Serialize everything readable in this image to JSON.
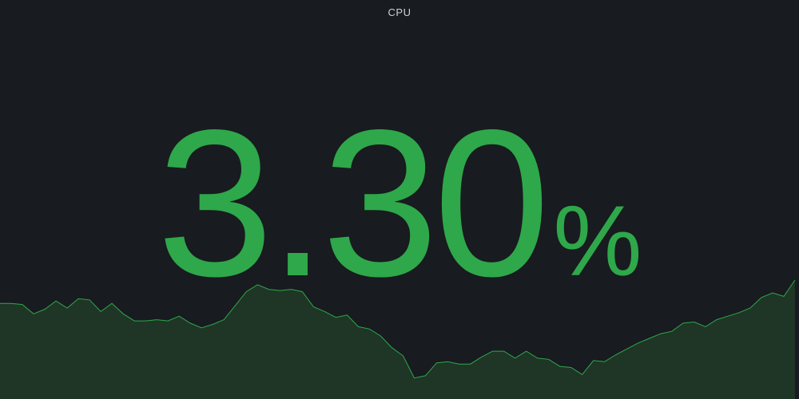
{
  "panel": {
    "title": "CPU",
    "value": "3.30",
    "unit": "%",
    "color": "#2ea84a",
    "fill_color": "#1f3526"
  },
  "sparkline_data": {
    "type": "area",
    "values": [
      0.52,
      0.52,
      0.51,
      0.43,
      0.47,
      0.54,
      0.48,
      0.56,
      0.55,
      0.45,
      0.52,
      0.43,
      0.37,
      0.37,
      0.38,
      0.37,
      0.41,
      0.35,
      0.31,
      0.34,
      0.38,
      0.5,
      0.62,
      0.68,
      0.64,
      0.63,
      0.64,
      0.62,
      0.49,
      0.45,
      0.4,
      0.42,
      0.32,
      0.3,
      0.24,
      0.14,
      0.07,
      -0.12,
      -0.1,
      0.01,
      0.02,
      0.0,
      0.0,
      0.06,
      0.11,
      0.11,
      0.05,
      0.11,
      0.05,
      0.04,
      -0.02,
      -0.03,
      -0.09,
      0.03,
      0.02,
      0.08,
      0.13,
      0.18,
      0.22,
      0.26,
      0.28,
      0.35,
      0.36,
      0.32,
      0.38,
      0.41,
      0.44,
      0.48,
      0.57,
      0.61,
      0.58,
      0.72
    ],
    "ylim": [
      -0.3,
      1.0
    ]
  }
}
